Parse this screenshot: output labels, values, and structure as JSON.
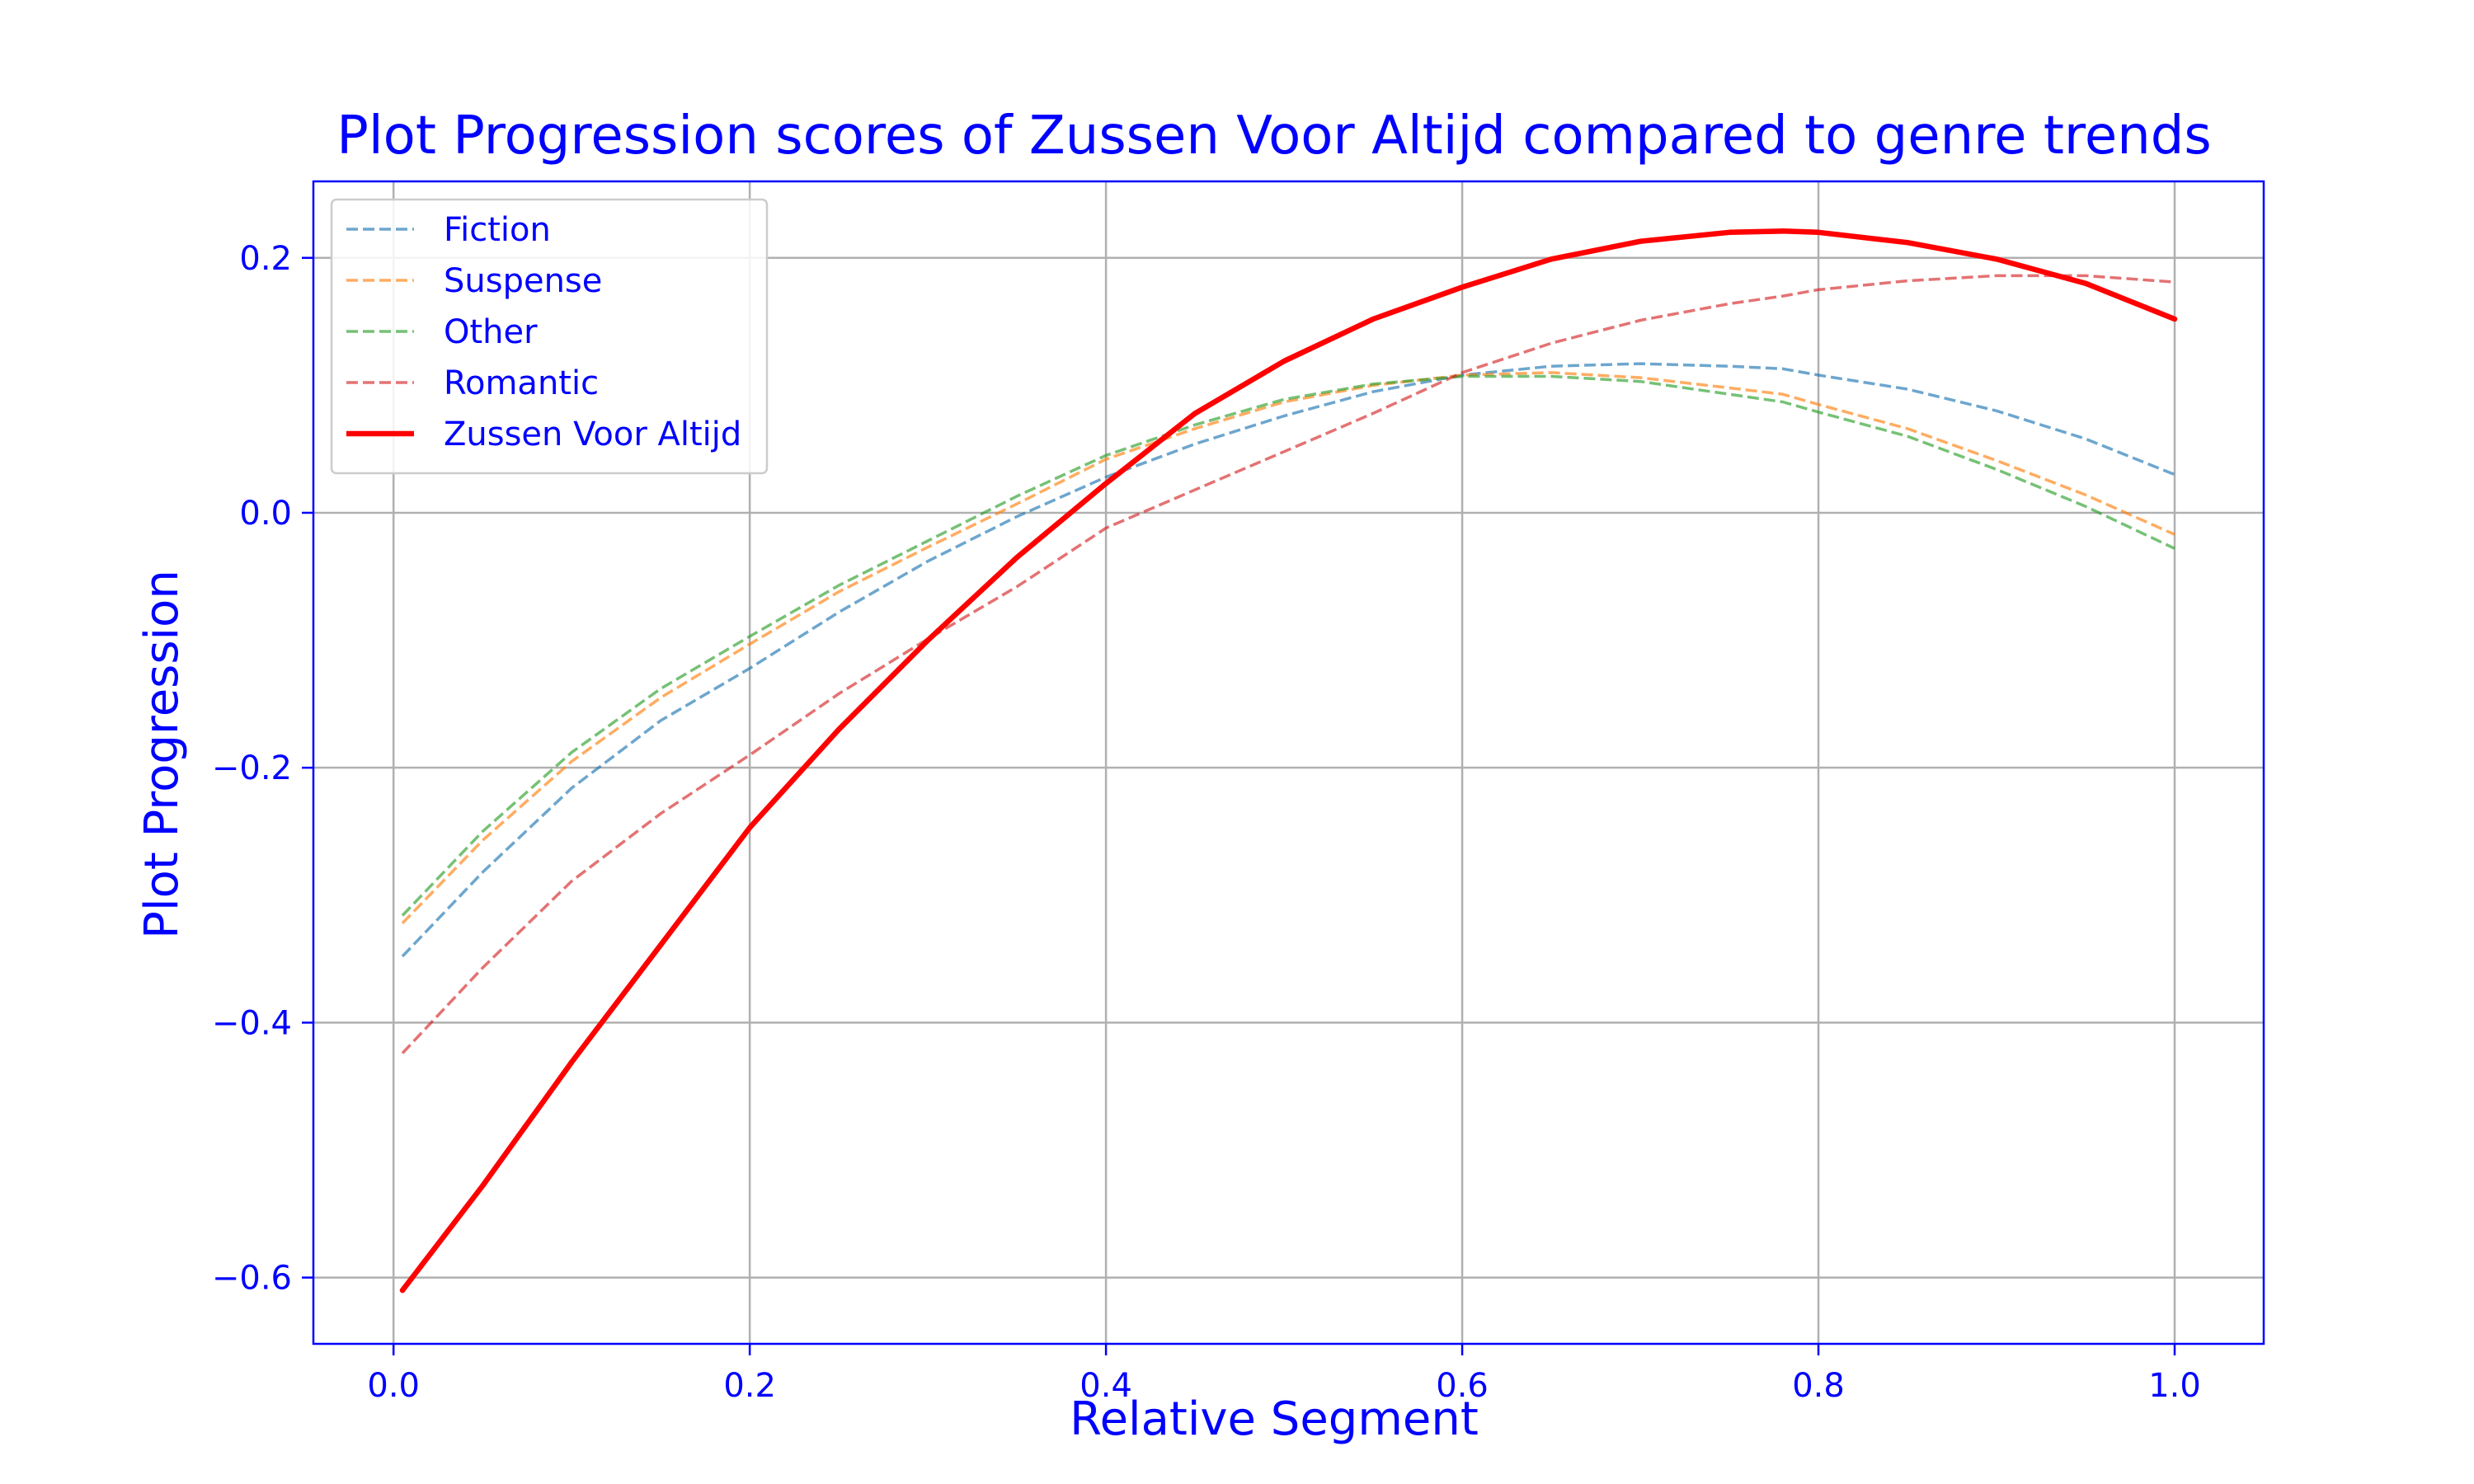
{
  "chart_data": {
    "type": "line",
    "title": "Plot Progression scores of Zussen Voor Altijd compared to genre trends",
    "xlabel": "Relative Segment",
    "ylabel": "Plot Progression",
    "xlim": [
      -0.045,
      1.05
    ],
    "ylim": [
      -0.652,
      0.26
    ],
    "x_ticks": [
      0.0,
      0.2,
      0.4,
      0.6,
      0.8,
      1.0
    ],
    "x_tick_labels": [
      "0.0",
      "0.2",
      "0.4",
      "0.6",
      "0.8",
      "1.0"
    ],
    "y_ticks": [
      -0.6,
      -0.4,
      -0.2,
      0.0,
      0.2
    ],
    "y_tick_labels": [
      "−0.6",
      "−0.4",
      "−0.2",
      "0.0",
      "0.2"
    ],
    "grid": true,
    "legend_position": "top-left",
    "text_color": "#0000ff",
    "axis_color": "#0000ff",
    "grid_color": "#b0b0b0",
    "x": [
      0.005,
      0.05,
      0.1,
      0.15,
      0.2,
      0.25,
      0.3,
      0.35,
      0.4,
      0.45,
      0.5,
      0.55,
      0.6,
      0.65,
      0.7,
      0.75,
      0.78,
      0.8,
      0.85,
      0.9,
      0.95,
      1.0
    ],
    "series": [
      {
        "name": "Fiction",
        "style": "dashed",
        "color": "#1f77b4",
        "values": [
          -0.348,
          -0.282,
          -0.216,
          -0.163,
          -0.122,
          -0.078,
          -0.038,
          -0.003,
          0.028,
          0.054,
          0.076,
          0.095,
          0.108,
          0.115,
          0.117,
          0.115,
          0.113,
          0.108,
          0.097,
          0.08,
          0.058,
          0.03
        ]
      },
      {
        "name": "Suspense",
        "style": "dashed",
        "color": "#ff7f0e",
        "values": [
          -0.322,
          -0.257,
          -0.195,
          -0.145,
          -0.103,
          -0.062,
          -0.027,
          0.007,
          0.042,
          0.066,
          0.087,
          0.1,
          0.108,
          0.11,
          0.106,
          0.098,
          0.093,
          0.085,
          0.066,
          0.041,
          0.014,
          -0.017
        ]
      },
      {
        "name": "Other",
        "style": "dashed",
        "color": "#2ca02c",
        "values": [
          -0.316,
          -0.25,
          -0.188,
          -0.138,
          -0.097,
          -0.057,
          -0.022,
          0.013,
          0.045,
          0.069,
          0.089,
          0.101,
          0.107,
          0.107,
          0.103,
          0.093,
          0.087,
          0.079,
          0.06,
          0.034,
          0.005,
          -0.028
        ]
      },
      {
        "name": "Romantic",
        "style": "dashed",
        "color": "#d62728",
        "values": [
          -0.424,
          -0.357,
          -0.289,
          -0.236,
          -0.19,
          -0.142,
          -0.099,
          -0.058,
          -0.012,
          0.018,
          0.048,
          0.078,
          0.11,
          0.133,
          0.151,
          0.164,
          0.17,
          0.175,
          0.182,
          0.186,
          0.186,
          0.181
        ]
      },
      {
        "name": "Zussen Voor Altijd",
        "style": "solid",
        "color": "#ff0000",
        "values": [
          -0.61,
          -0.528,
          -0.431,
          -0.339,
          -0.247,
          -0.17,
          -0.1,
          -0.035,
          0.023,
          0.078,
          0.119,
          0.152,
          0.177,
          0.199,
          0.213,
          0.22,
          0.221,
          0.22,
          0.212,
          0.199,
          0.18,
          0.152
        ]
      }
    ]
  }
}
